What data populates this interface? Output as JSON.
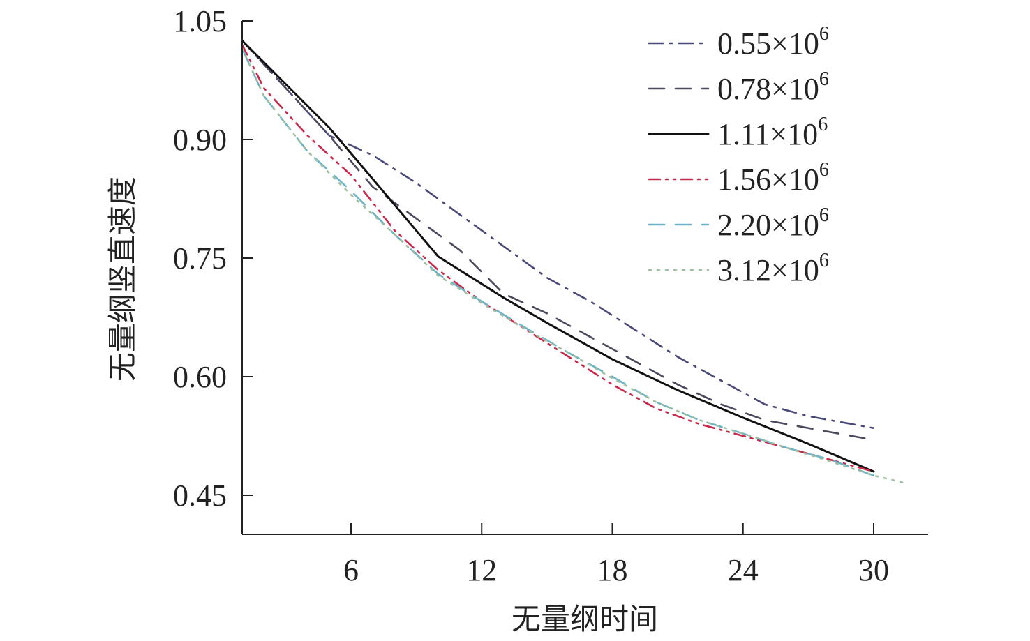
{
  "chart_data": {
    "type": "line",
    "title": "",
    "xlabel": "无量纲时间",
    "ylabel": "无量纲竖直速度",
    "xlim": [
      0,
      32
    ],
    "ylim": [
      0.4,
      1.05
    ],
    "xticks": [
      6,
      12,
      18,
      24,
      30
    ],
    "xtick_labels": [
      "6",
      "12",
      "18",
      "24",
      "30"
    ],
    "yticks": [
      0.45,
      0.6,
      0.75,
      0.9,
      1.05
    ],
    "ytick_labels": [
      "0.45",
      "0.60",
      "0.75",
      "0.90",
      "1.05"
    ],
    "grid": false,
    "legend_position": "top-right",
    "series": [
      {
        "name": "0.55×10",
        "exponent": "6",
        "color": "#4a4a7a",
        "style": "dash-dot",
        "x": [
          1,
          3,
          5,
          7,
          9,
          11,
          13,
          15,
          17,
          19,
          21,
          23,
          25,
          27,
          30
        ],
        "y": [
          1.025,
          0.965,
          0.905,
          0.88,
          0.845,
          0.805,
          0.765,
          0.725,
          0.695,
          0.66,
          0.625,
          0.595,
          0.565,
          0.55,
          0.535
        ]
      },
      {
        "name": "0.78×10",
        "exponent": "6",
        "color": "#4a4a5e",
        "style": "dash",
        "x": [
          1,
          3,
          5,
          7,
          9,
          11,
          13,
          15,
          17,
          19,
          21,
          23,
          25,
          27,
          30
        ],
        "y": [
          1.025,
          0.965,
          0.905,
          0.84,
          0.8,
          0.76,
          0.705,
          0.68,
          0.65,
          0.62,
          0.59,
          0.565,
          0.545,
          0.535,
          0.52
        ]
      },
      {
        "name": "1.11×10",
        "exponent": "6",
        "color": "#111111",
        "style": "solid",
        "x": [
          1,
          3,
          5,
          7,
          10,
          13,
          15,
          18,
          21,
          24,
          27,
          30
        ],
        "y": [
          1.025,
          0.97,
          0.915,
          0.85,
          0.752,
          0.7,
          0.668,
          0.622,
          0.583,
          0.548,
          0.515,
          0.48
        ]
      },
      {
        "name": "1.56×10",
        "exponent": "6",
        "color": "#c8284a",
        "style": "dash-dot-dot",
        "x": [
          1,
          2,
          4,
          6,
          8,
          10,
          12,
          14,
          16,
          18,
          20,
          22,
          24,
          26,
          28,
          30
        ],
        "y": [
          1.02,
          0.965,
          0.905,
          0.855,
          0.785,
          0.735,
          0.695,
          0.66,
          0.625,
          0.59,
          0.56,
          0.54,
          0.525,
          0.51,
          0.495,
          0.48
        ]
      },
      {
        "name": "2.20×10",
        "exponent": "6",
        "color": "#6db4c8",
        "style": "dash",
        "x": [
          1,
          2,
          4,
          6,
          8,
          10,
          12,
          14,
          16,
          18,
          20,
          22,
          24,
          26,
          28,
          30
        ],
        "y": [
          1.015,
          0.955,
          0.885,
          0.835,
          0.78,
          0.73,
          0.695,
          0.662,
          0.63,
          0.6,
          0.568,
          0.545,
          0.528,
          0.51,
          0.495,
          0.475
        ]
      },
      {
        "name": "3.12×10",
        "exponent": "6",
        "color": "#9fbfa0",
        "style": "dot",
        "x": [
          1,
          2,
          4,
          6,
          8,
          10,
          12,
          14,
          16,
          18,
          20,
          22,
          24,
          26,
          28,
          30,
          31.5
        ],
        "y": [
          1.015,
          0.955,
          0.885,
          0.83,
          0.78,
          0.728,
          0.693,
          0.66,
          0.63,
          0.598,
          0.568,
          0.545,
          0.528,
          0.51,
          0.493,
          0.475,
          0.465
        ]
      }
    ]
  }
}
